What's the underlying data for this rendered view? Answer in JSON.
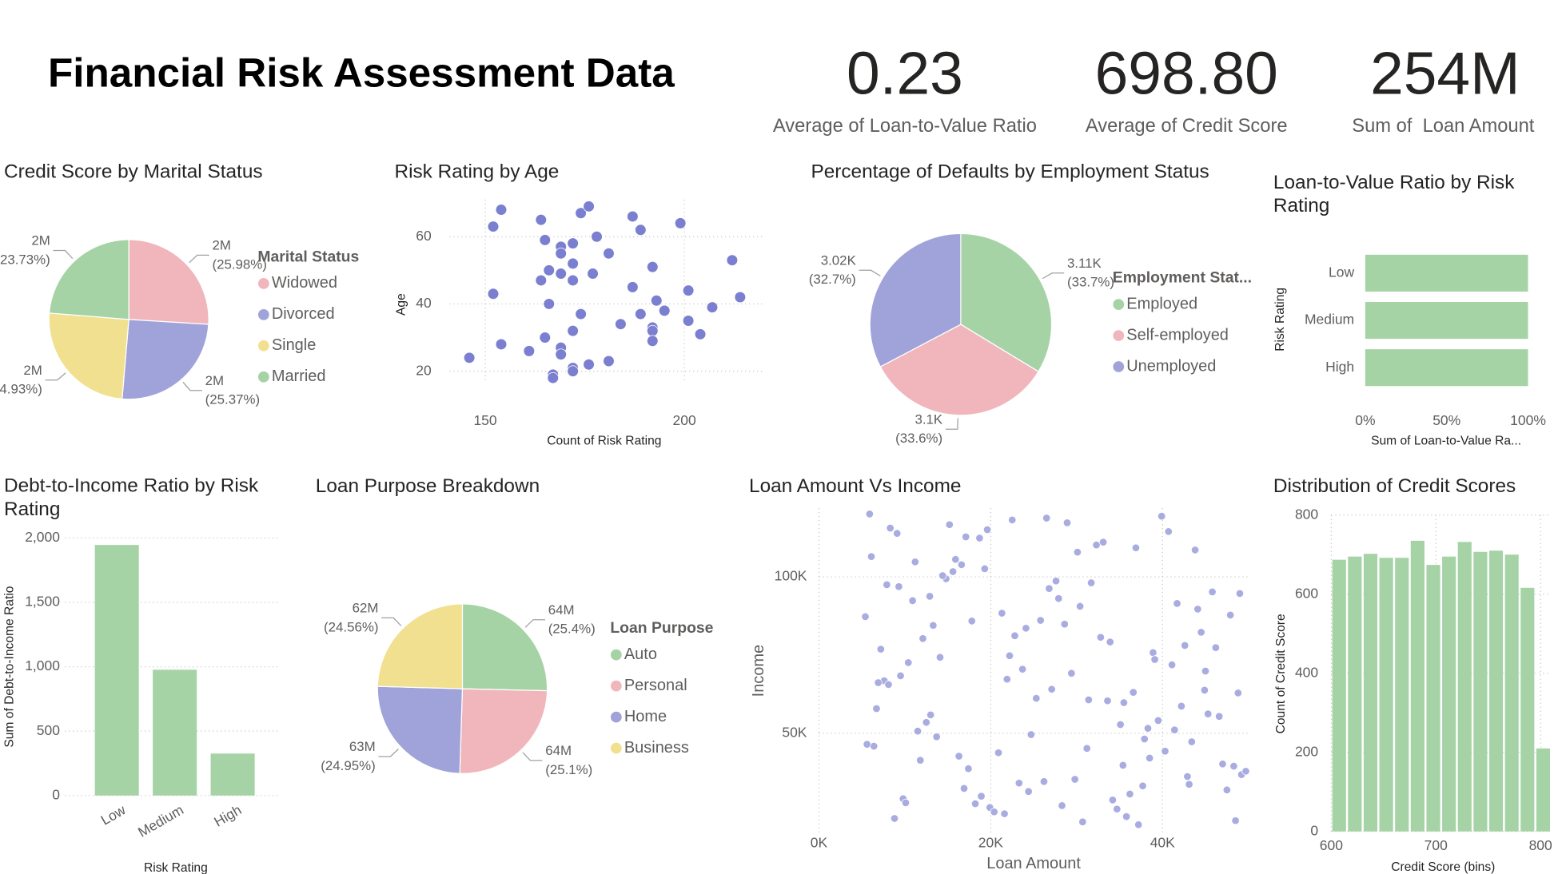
{
  "header": {
    "title": "Financial Risk Assessment Data"
  },
  "kpis": [
    {
      "value": "0.23",
      "label": "Average of Loan-to-Value Ratio"
    },
    {
      "value": "698.80",
      "label": "Average of Credit Score"
    },
    {
      "value": "254M",
      "label": "Sum of  Loan Amount"
    }
  ],
  "chart_data": [
    {
      "type": "pie",
      "title": "Credit Score by Marital Status",
      "legend_title": "Marital Status",
      "categories": [
        "Widowed",
        "Divorced",
        "Single",
        "Married"
      ],
      "values": [
        1676000,
        1637000,
        1608000,
        1531000
      ],
      "value_labels": [
        "2M",
        "2M",
        "2M",
        "2M"
      ],
      "percent_labels": [
        "(25.98%)",
        "(25.37%)",
        "(24.93%)",
        "(23.73%)"
      ],
      "colors": [
        "#f0b6bb",
        "#a0a3d9",
        "#f1e08f",
        "#a6d3a6"
      ]
    },
    {
      "type": "scatter",
      "title": "Risk Rating by Age",
      "x_label": "Count of Risk Rating",
      "y_label": "Age",
      "color": "#7b7fcf",
      "grid": true,
      "x": [
        154,
        152,
        164,
        174,
        176,
        187,
        189,
        199,
        165,
        169,
        169,
        172,
        178,
        181,
        192,
        212,
        166,
        164,
        169,
        172,
        177,
        172,
        152,
        166,
        187,
        193,
        195,
        189,
        201,
        207,
        214,
        174,
        184,
        192,
        192,
        201,
        172,
        165,
        192,
        204,
        154,
        161,
        169,
        169,
        176,
        181,
        172,
        172,
        167,
        167,
        146
      ],
      "values": [
        68,
        63,
        65,
        67,
        69,
        66,
        62,
        64,
        59,
        57,
        55,
        58,
        60,
        55,
        51,
        53,
        50,
        47,
        49,
        52,
        49,
        47,
        43,
        40,
        45,
        41,
        38,
        37,
        44,
        39,
        42,
        37,
        34,
        33,
        32,
        35,
        32,
        30,
        29,
        31,
        28,
        26,
        27,
        25,
        22,
        23,
        21,
        20,
        19,
        18,
        24
      ],
      "xlim": [
        141,
        220
      ],
      "ylim": [
        17,
        71
      ],
      "xticks": [
        150,
        200
      ],
      "yticks": [
        20,
        40,
        60
      ]
    },
    {
      "type": "pie",
      "title": "Percentage of Defaults by Employment Status",
      "legend_title": "Employment Stat...",
      "categories": [
        "Employed",
        "Self-employed",
        "Unemployed"
      ],
      "values": [
        3110,
        3100,
        3020
      ],
      "value_labels": [
        "3.11K",
        "3.1K",
        "3.02K"
      ],
      "percent_labels": [
        "(33.7%)",
        "(33.6%)",
        "(32.7%)"
      ],
      "colors": [
        "#a6d3a6",
        "#f0b6bb",
        "#a0a3d9"
      ]
    },
    {
      "type": "hbar",
      "title": "Loan-to-Value Ratio by Risk Rating",
      "x_label": "Sum of Loan-to-Value Ra...",
      "y_label": "Risk Rating",
      "categories": [
        "Low",
        "Medium",
        "High"
      ],
      "values": [
        100,
        100,
        100
      ],
      "color": "#a6d3a6",
      "xlim": [
        0,
        100
      ],
      "xticks": [
        {
          "value": 0,
          "label": "0%"
        },
        {
          "value": 50,
          "label": "50%"
        },
        {
          "value": 100,
          "label": "100%"
        }
      ]
    },
    {
      "type": "bar",
      "title": "Debt-to-Income Ratio by Risk Rating",
      "x_label": "Risk Rating",
      "y_label": "Sum of Debt-to-Income Ratio",
      "categories": [
        "Low",
        "Medium",
        "High"
      ],
      "values": [
        1946,
        977,
        326
      ],
      "color": "#a6d3a6",
      "grid": true,
      "ylim": [
        0,
        2000
      ],
      "yticks": [
        0,
        500,
        {
          "value": 1000,
          "label": "1,000"
        },
        {
          "value": 1500,
          "label": "1,500"
        },
        {
          "value": 2000,
          "label": "2,000"
        }
      ]
    },
    {
      "type": "pie",
      "title": "Loan Purpose Breakdown",
      "legend_title": "Loan Purpose",
      "categories": [
        "Auto",
        "Personal",
        "Home",
        "Business"
      ],
      "values": [
        64400000,
        63700000,
        63300000,
        62300000
      ],
      "value_labels": [
        "64M",
        "64M",
        "63M",
        "62M"
      ],
      "percent_labels": [
        "(25.4%)",
        "(25.1%)",
        "(24.95%)",
        "(24.56%)"
      ],
      "colors": [
        "#a6d3a6",
        "#f0b6bb",
        "#a0a3d9",
        "#f1e08f"
      ]
    },
    {
      "type": "scatter",
      "title": "Loan Amount Vs Income",
      "x_label": "Loan Amount",
      "y_label": "Income",
      "color": "#a9ace0",
      "grid": true,
      "x": [
        5400,
        31200,
        18700,
        44900,
        9800,
        27600,
        38300,
        14100,
        49200,
        22500,
        6700,
        35800,
        41700,
        16300,
        29400,
        11200,
        47500,
        24100,
        33600,
        8300,
        19900,
        42600,
        13700,
        36900,
        26200,
        45800,
        7600,
        30700,
        21300,
        39500,
        15600,
        48300,
        10400,
        28900,
        34200,
        17800,
        43400,
        6100,
        25300,
        37700,
        12900,
        46600,
        20400,
        32800,
        9100,
        40300,
        23700,
        14800,
        49700,
        27100,
        5900,
        35100,
        18200,
        44100,
        11800,
        30100,
        38900,
        16900,
        26800,
        42200,
        8800,
        33100,
        21900,
        47000,
        13300,
        39900,
        24700,
        7200,
        36200,
        19300,
        45300,
        10900,
        29800,
        41100,
        15200,
        34700,
        22800,
        48800,
        6400,
        31700,
        17400,
        43800,
        12500,
        37200,
        25800,
        9500,
        40700,
        20900,
        46200,
        28300,
        14400,
        35500,
        23300,
        49000,
        8100,
        32300,
        18900,
        44500,
        11500,
        39100,
        26500,
        5600,
        30400,
        42900,
        16600,
        36600,
        21600,
        47900,
        13000,
        33900,
        24400,
        7900,
        38500,
        19600,
        45000,
        10100,
        28600,
        41400,
        15900,
        35400,
        22200,
        48500,
        9300,
        31400,
        17100,
        43100,
        12100,
        37900,
        27900,
        6900
      ],
      "values": [
        87300,
        45200,
        112400,
        63800,
        29100,
        98700,
        51600,
        74300,
        36800,
        118200,
        57900,
        23400,
        91500,
        42700,
        69200,
        104800,
        31900,
        83600,
        60400,
        115600,
        26300,
        78100,
        48900,
        109300,
        34600,
        95200,
        66800,
        21700,
        88400,
        54100,
        101700,
        39500,
        72600,
        117300,
        28700,
        85900,
        47300,
        106500,
        61200,
        33200,
        93800,
        55400,
        24900,
        80700,
        113900,
        44300,
        70500,
        99400,
        37900,
        64100,
        120100,
        52800,
        27500,
        89700,
        41400,
        107900,
        75800,
        32400,
        96300,
        58700,
        22800,
        111100,
        67300,
        40200,
        84500,
        119400,
        49600,
        76900,
        30600,
        102600,
        56200,
        92400,
        35300,
        71900,
        116700,
        25800,
        81200,
        62900,
        45900,
        98100,
        38700,
        108600,
        53500,
        20800,
        86100,
        68400,
        114500,
        43800,
        77400,
        26900,
        100400,
        59800,
        34100,
        94700,
        65600,
        110200,
        29900,
        82300,
        50700,
        73600,
        118800,
        46500,
        90600,
        36200,
        103900,
        63100,
        24300,
        87800,
        55900,
        79200,
        31400,
        97500,
        42100,
        115100,
        69900,
        27800,
        84900,
        51100,
        105600,
        39800,
        74800,
        22100,
        96900,
        60700,
        112800,
        33700,
        80300,
        48200,
        93100,
        66200
      ],
      "xlim": [
        0,
        50000
      ],
      "ylim": [
        18000,
        122000
      ],
      "xticks": [
        {
          "value": 0,
          "label": "0K"
        },
        {
          "value": 20000,
          "label": "20K"
        },
        {
          "value": 40000,
          "label": "40K"
        }
      ],
      "yticks": [
        {
          "value": 50000,
          "label": "50K"
        },
        {
          "value": 100000,
          "label": "100K"
        }
      ]
    },
    {
      "type": "histogram",
      "title": "Distribution of Credit Scores",
      "x_label": "Credit Score (bins)",
      "y_label": "Count of Credit Score",
      "color": "#a6d3a6",
      "grid": true,
      "bins": [
        600,
        615,
        630,
        645,
        660,
        675,
        690,
        705,
        720,
        735,
        750,
        765,
        780,
        795,
        810
      ],
      "values": [
        687,
        695,
        702,
        692,
        692,
        735,
        674,
        695,
        732,
        707,
        710,
        700,
        616,
        210
      ],
      "xlim": [
        600,
        810
      ],
      "ylim": [
        0,
        800
      ],
      "xticks": [
        600,
        700,
        800
      ],
      "yticks": [
        0,
        200,
        400,
        600,
        800
      ]
    }
  ]
}
